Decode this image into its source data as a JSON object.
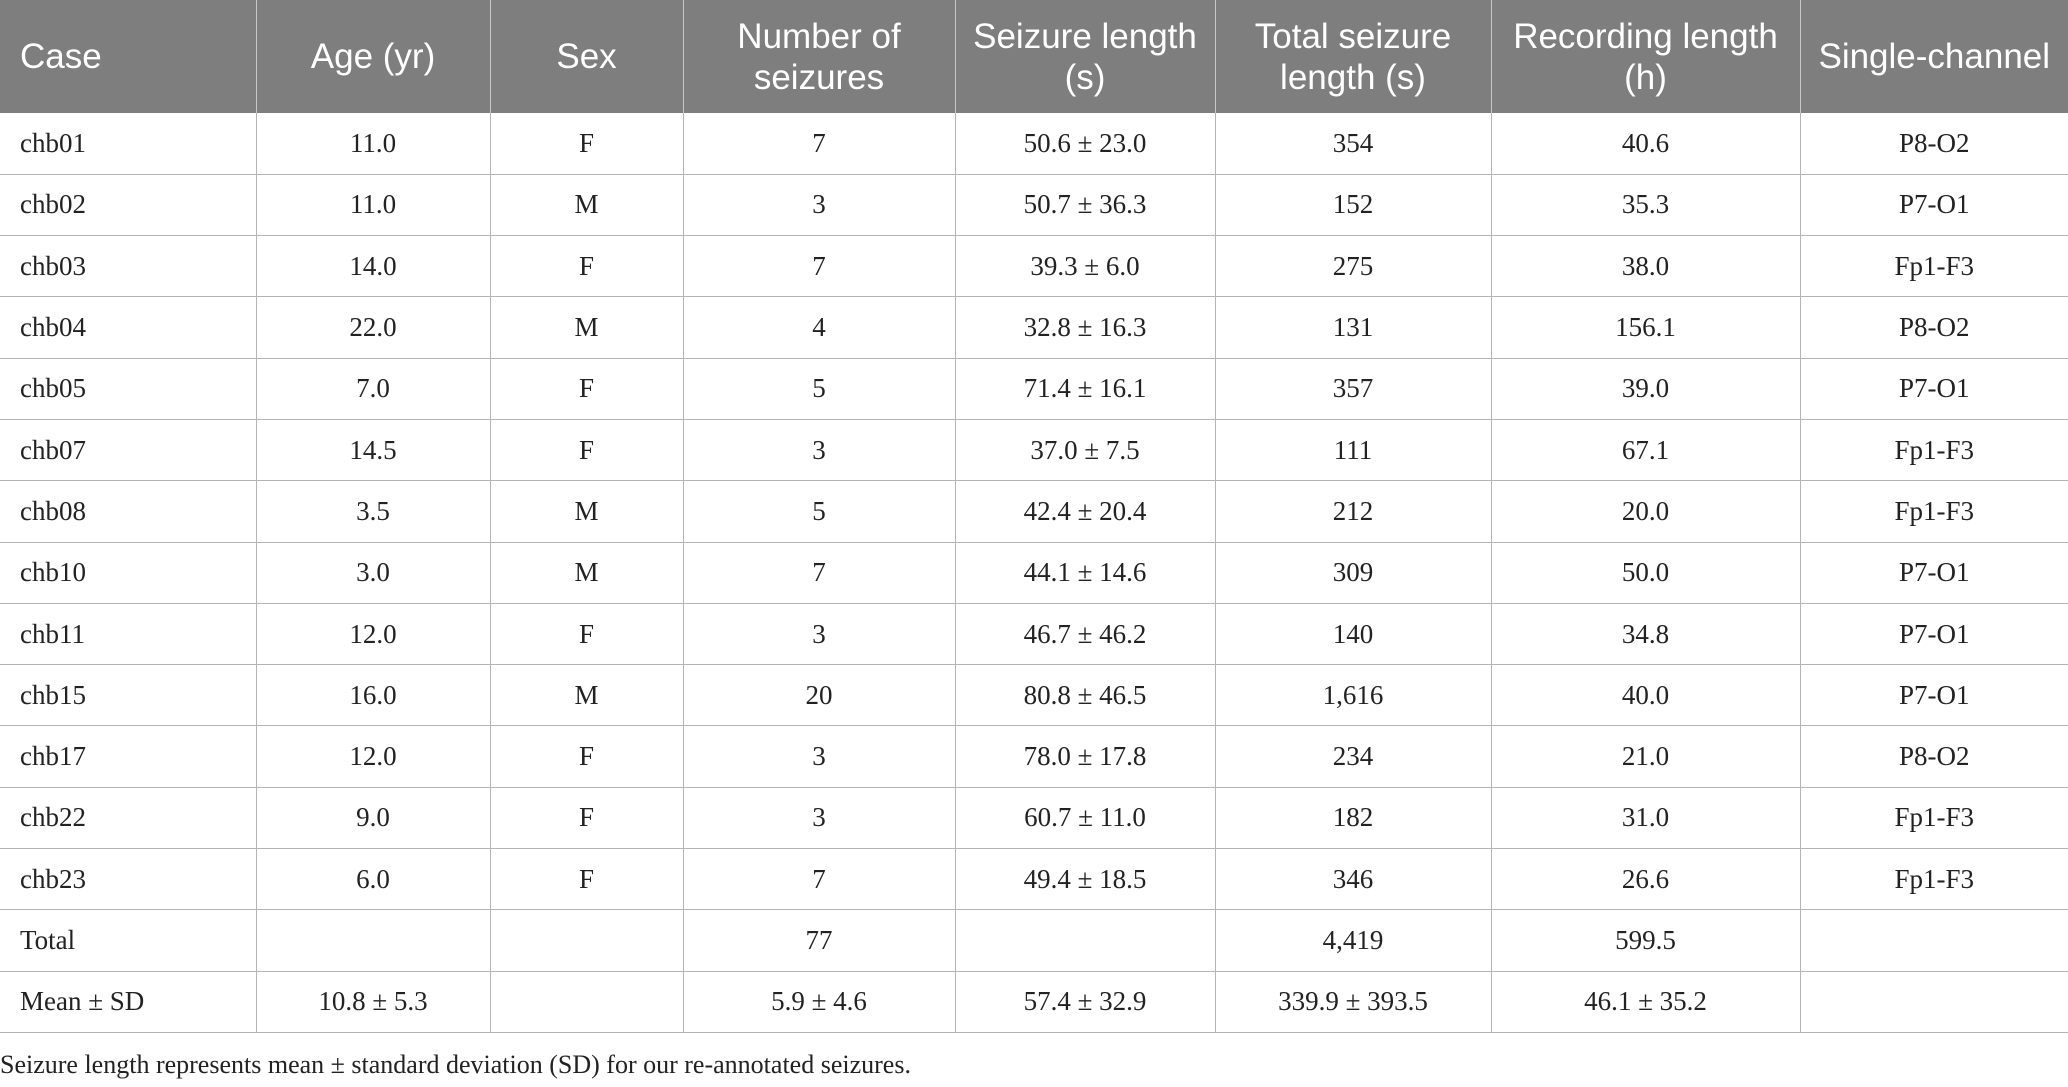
{
  "table": {
    "headers": [
      "Case",
      "Age (yr)",
      "Sex",
      "Number of seizures",
      "Seizure length (s)",
      "Total seizure length (s)",
      "Recording length (h)",
      "Single-channel"
    ],
    "rows": [
      [
        "chb01",
        "11.0",
        "F",
        "7",
        "50.6 ± 23.0",
        "354",
        "40.6",
        "P8-O2"
      ],
      [
        "chb02",
        "11.0",
        "M",
        "3",
        "50.7 ± 36.3",
        "152",
        "35.3",
        "P7-O1"
      ],
      [
        "chb03",
        "14.0",
        "F",
        "7",
        "39.3 ± 6.0",
        "275",
        "38.0",
        "Fp1-F3"
      ],
      [
        "chb04",
        "22.0",
        "M",
        "4",
        "32.8 ± 16.3",
        "131",
        "156.1",
        "P8-O2"
      ],
      [
        "chb05",
        "7.0",
        "F",
        "5",
        "71.4 ± 16.1",
        "357",
        "39.0",
        "P7-O1"
      ],
      [
        "chb07",
        "14.5",
        "F",
        "3",
        "37.0 ± 7.5",
        "111",
        "67.1",
        "Fp1-F3"
      ],
      [
        "chb08",
        "3.5",
        "M",
        "5",
        "42.4 ± 20.4",
        "212",
        "20.0",
        "Fp1-F3"
      ],
      [
        "chb10",
        "3.0",
        "M",
        "7",
        "44.1 ± 14.6",
        "309",
        "50.0",
        "P7-O1"
      ],
      [
        "chb11",
        "12.0",
        "F",
        "3",
        "46.7 ± 46.2",
        "140",
        "34.8",
        "P7-O1"
      ],
      [
        "chb15",
        "16.0",
        "M",
        "20",
        "80.8 ± 46.5",
        "1,616",
        "40.0",
        "P7-O1"
      ],
      [
        "chb17",
        "12.0",
        "F",
        "3",
        "78.0 ± 17.8",
        "234",
        "21.0",
        "P8-O2"
      ],
      [
        "chb22",
        "9.0",
        "F",
        "3",
        "60.7 ± 11.0",
        "182",
        "31.0",
        "Fp1-F3"
      ],
      [
        "chb23",
        "6.0",
        "F",
        "7",
        "49.4 ± 18.5",
        "346",
        "26.6",
        "Fp1-F3"
      ],
      [
        "Total",
        "",
        "",
        "77",
        "",
        "4,419",
        "599.5",
        ""
      ],
      [
        "Mean ± SD",
        "10.8 ± 5.3",
        "",
        "5.9 ± 4.6",
        "57.4 ± 32.9",
        "339.9 ± 393.5",
        "46.1 ± 35.2",
        ""
      ]
    ]
  },
  "footnote": "Seizure length represents mean ± standard deviation (SD) for our re-annotated seizures.",
  "colors": {
    "header_bg": "#7e7e7e",
    "header_text": "#ffffff",
    "grid": "#b4b4b4"
  }
}
